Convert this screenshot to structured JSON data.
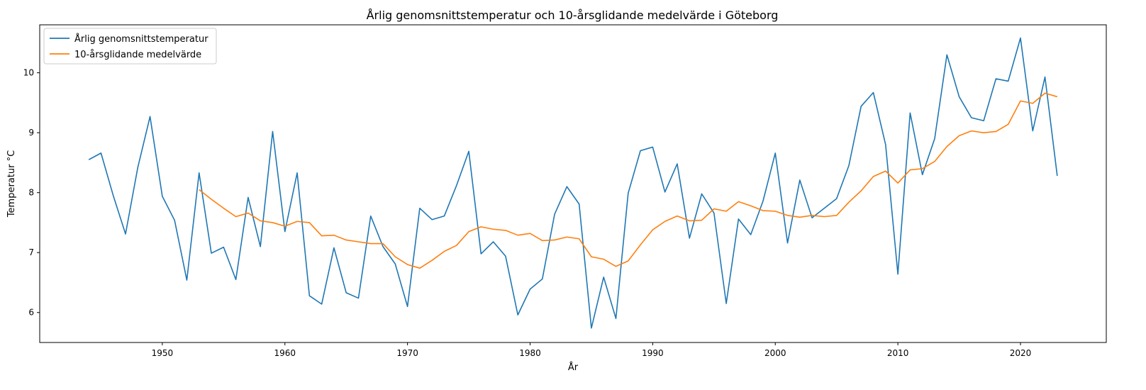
{
  "chart_data": {
    "type": "line",
    "title": "Årlig genomsnittstemperatur och 10-årsglidande medelvärde i Göteborg",
    "xlabel": "År",
    "ylabel": "Temperatur °C",
    "xlim": [
      1940,
      2027
    ],
    "ylim": [
      5.5,
      10.8
    ],
    "xticks": [
      1950,
      1960,
      1970,
      1980,
      1990,
      2000,
      2010,
      2020
    ],
    "yticks": [
      6,
      7,
      8,
      9,
      10
    ],
    "grid": false,
    "legend_position": "top-left",
    "series": [
      {
        "name": "Årlig genomsnittstemperatur",
        "color": "#1f77b4",
        "x": [
          1944,
          1945,
          1946,
          1947,
          1948,
          1949,
          1950,
          1951,
          1952,
          1953,
          1954,
          1955,
          1956,
          1957,
          1958,
          1959,
          1960,
          1961,
          1962,
          1963,
          1964,
          1965,
          1966,
          1967,
          1968,
          1969,
          1970,
          1971,
          1972,
          1973,
          1974,
          1975,
          1976,
          1977,
          1978,
          1979,
          1980,
          1981,
          1982,
          1983,
          1984,
          1985,
          1986,
          1987,
          1988,
          1989,
          1990,
          1991,
          1992,
          1993,
          1994,
          1995,
          1996,
          1997,
          1998,
          1999,
          2000,
          2001,
          2002,
          2003,
          2004,
          2005,
          2006,
          2007,
          2008,
          2009,
          2010,
          2011,
          2012,
          2013,
          2014,
          2015,
          2016,
          2017,
          2018,
          2019,
          2020,
          2021,
          2022,
          2023
        ],
        "values": [
          8.55,
          8.66,
          7.95,
          7.31,
          8.42,
          9.27,
          7.94,
          7.54,
          6.54,
          8.33,
          6.99,
          7.09,
          6.55,
          7.92,
          7.1,
          9.02,
          7.35,
          8.33,
          6.28,
          6.14,
          7.08,
          6.33,
          6.24,
          7.61,
          7.1,
          6.81,
          6.1,
          7.74,
          7.55,
          7.61,
          8.12,
          8.69,
          6.98,
          7.18,
          6.94,
          5.96,
          6.39,
          6.56,
          7.64,
          8.1,
          7.81,
          5.74,
          6.59,
          5.9,
          7.99,
          8.7,
          8.76,
          8.01,
          8.48,
          7.24,
          7.98,
          7.66,
          6.15,
          7.56,
          7.3,
          7.86,
          8.66,
          7.16,
          8.21,
          7.58,
          7.74,
          7.9,
          8.45,
          9.44,
          9.67,
          8.8,
          6.64,
          9.33,
          8.3,
          8.9,
          10.3,
          9.6,
          9.25,
          9.2,
          9.9,
          9.86,
          10.58,
          9.03,
          9.93,
          8.28
        ]
      },
      {
        "name": "10-årsglidande medelvärde",
        "color": "#ff7f0e",
        "x": [
          1953,
          1954,
          1955,
          1956,
          1957,
          1958,
          1959,
          1960,
          1961,
          1962,
          1963,
          1964,
          1965,
          1966,
          1967,
          1968,
          1969,
          1970,
          1971,
          1972,
          1973,
          1974,
          1975,
          1976,
          1977,
          1978,
          1979,
          1980,
          1981,
          1982,
          1983,
          1984,
          1985,
          1986,
          1987,
          1988,
          1989,
          1990,
          1991,
          1992,
          1993,
          1994,
          1995,
          1996,
          1997,
          1998,
          1999,
          2000,
          2001,
          2002,
          2003,
          2004,
          2005,
          2006,
          2007,
          2008,
          2009,
          2010,
          2011,
          2012,
          2013,
          2014,
          2015,
          2016,
          2017,
          2018,
          2019,
          2020,
          2021,
          2022,
          2023
        ],
        "values": [
          8.05,
          7.89,
          7.74,
          7.6,
          7.66,
          7.53,
          7.5,
          7.44,
          7.52,
          7.5,
          7.28,
          7.29,
          7.21,
          7.18,
          7.15,
          7.15,
          6.93,
          6.8,
          6.74,
          6.87,
          7.02,
          7.12,
          7.35,
          7.43,
          7.39,
          7.37,
          7.29,
          7.32,
          7.2,
          7.21,
          7.26,
          7.23,
          6.93,
          6.89,
          6.77,
          6.86,
          7.13,
          7.38,
          7.52,
          7.61,
          7.53,
          7.54,
          7.73,
          7.69,
          7.85,
          7.78,
          7.7,
          7.69,
          7.62,
          7.59,
          7.62,
          7.6,
          7.62,
          7.84,
          8.03,
          8.27,
          8.36,
          8.16,
          8.38,
          8.4,
          8.52,
          8.77,
          8.95,
          9.03,
          9.0,
          9.02,
          9.14,
          9.53,
          9.49,
          9.66,
          9.6
        ]
      }
    ]
  }
}
